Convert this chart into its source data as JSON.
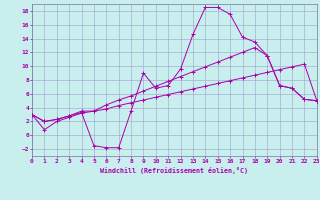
{
  "bg_color": "#c8eeee",
  "grid_color": "#a0a0cc",
  "line_color": "#aa00aa",
  "xlim": [
    0,
    23
  ],
  "ylim": [
    -3,
    19
  ],
  "xticks": [
    0,
    1,
    2,
    3,
    4,
    5,
    6,
    7,
    8,
    9,
    10,
    11,
    12,
    13,
    14,
    15,
    16,
    17,
    18,
    19,
    20,
    21,
    22,
    23
  ],
  "yticks": [
    -2,
    0,
    2,
    4,
    6,
    8,
    10,
    12,
    14,
    16,
    18
  ],
  "xlabel": "Windchill (Refroidissement éolien,°C)",
  "line1_x": [
    0,
    1,
    2,
    3,
    4,
    5,
    6,
    7,
    8,
    9,
    10,
    11,
    12,
    13,
    14,
    15,
    16,
    17,
    18,
    19,
    20,
    21,
    22,
    23
  ],
  "line1_y": [
    3.0,
    0.8,
    2.0,
    2.6,
    3.2,
    3.5,
    3.8,
    4.3,
    4.7,
    5.1,
    5.5,
    5.9,
    6.3,
    6.7,
    7.1,
    7.5,
    7.9,
    8.3,
    8.7,
    9.1,
    9.5,
    9.9,
    10.3,
    5.0
  ],
  "line2_x": [
    0,
    1,
    2,
    3,
    4,
    5,
    6,
    7,
    8,
    9,
    10,
    11,
    12,
    13,
    14,
    15,
    16,
    17,
    18,
    19,
    20,
    21,
    22,
    23
  ],
  "line2_y": [
    3.0,
    2.0,
    2.3,
    2.8,
    3.3,
    -1.5,
    -1.8,
    -1.8,
    3.5,
    9.0,
    6.8,
    7.2,
    9.6,
    14.6,
    18.5,
    18.5,
    17.5,
    14.2,
    13.5,
    11.5,
    7.2,
    6.8,
    5.2,
    5.0
  ],
  "line3_x": [
    0,
    1,
    2,
    3,
    4,
    5,
    6,
    7,
    8,
    9,
    10,
    11,
    12,
    13,
    14,
    15,
    16,
    17,
    18,
    19,
    20,
    21,
    22,
    23
  ],
  "line3_y": [
    3.0,
    2.0,
    2.3,
    2.8,
    3.5,
    3.5,
    4.4,
    5.1,
    5.7,
    6.4,
    7.1,
    7.8,
    8.5,
    9.2,
    9.9,
    10.6,
    11.3,
    12.0,
    12.7,
    11.5,
    7.2,
    6.8,
    5.2,
    5.0
  ]
}
